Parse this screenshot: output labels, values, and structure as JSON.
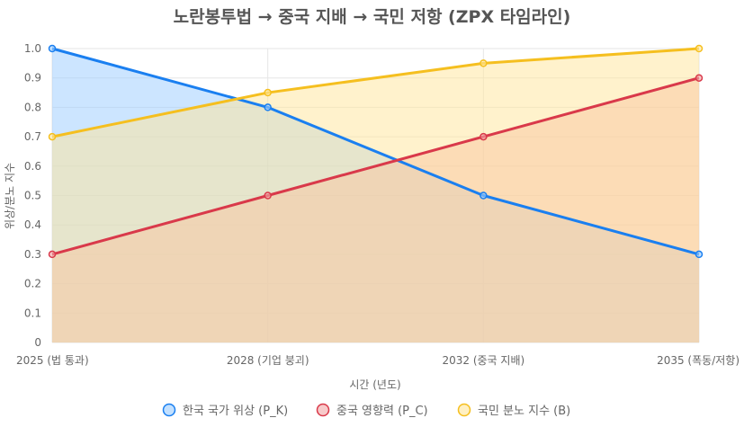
{
  "chart_data": {
    "type": "area",
    "title": "노란봉투법 → 중국 지배 → 국민 저항 (ZPX 타임라인)",
    "xlabel": "시간 (년도)",
    "ylabel": "위상/분노 지수",
    "categories": [
      "2025 (법 통과)",
      "2028 (기업 붕괴)",
      "2032 (중국 지배)",
      "2035 (폭동/저항)"
    ],
    "ylim": [
      0,
      1.0
    ],
    "yticks": [
      0,
      0.1,
      0.2,
      0.3,
      0.4,
      0.5,
      0.6,
      0.7,
      0.8,
      0.9,
      1.0
    ],
    "yticklabels": [
      "0",
      "0.1",
      "0.2",
      "0.3",
      "0.4",
      "0.5",
      "0.6",
      "0.7",
      "0.8",
      "0.9",
      "1.0"
    ],
    "grid": true,
    "legend_position": "bottom",
    "series": [
      {
        "name": "한국 국가 위상 (P_K)",
        "values": [
          1.0,
          0.8,
          0.5,
          0.3
        ],
        "color": "#1a7ff0",
        "fill": "#99ccff"
      },
      {
        "name": "중국 영향력 (P_C)",
        "values": [
          0.3,
          0.5,
          0.7,
          0.9
        ],
        "color": "#d9394a",
        "fill": "#f2a6a6"
      },
      {
        "name": "국민 분노 지수 (B)",
        "values": [
          0.7,
          0.85,
          0.95,
          1.0
        ],
        "color": "#f5bf1f",
        "fill": "#ffe699"
      }
    ]
  }
}
